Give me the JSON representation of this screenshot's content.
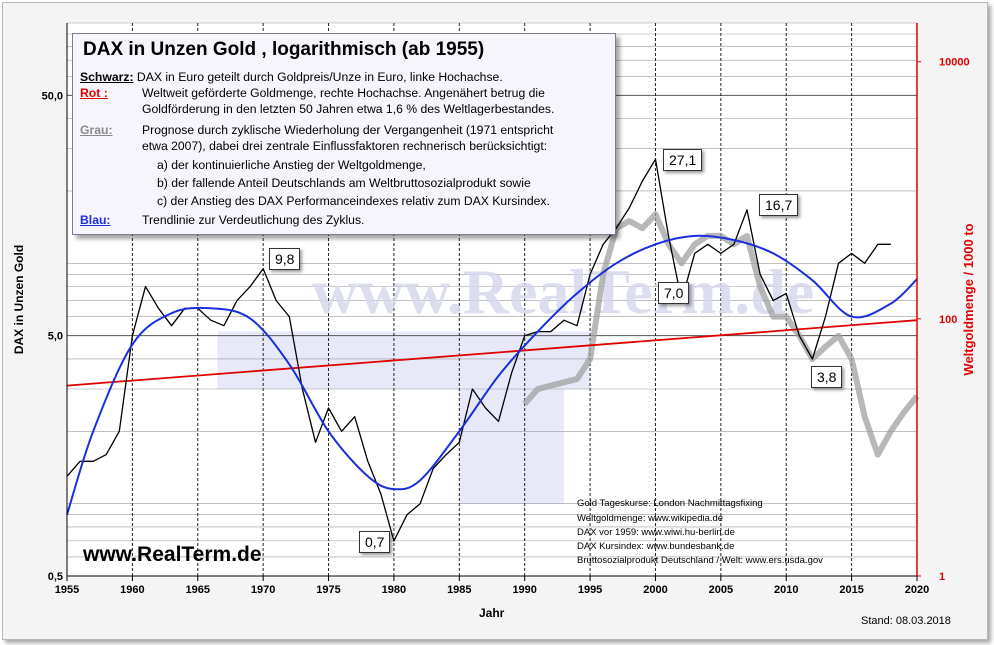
{
  "chart_data": {
    "type": "line",
    "title": "DAX in Unzen Gold , logarithmisch  (ab 1955)",
    "xlabel": "Jahr",
    "ylabel": "DAX in Unzen Gold",
    "ylabel_right": "Weltgoldmenge / 1000 to",
    "x_range": [
      1955,
      2020
    ],
    "y_range": [
      0.5,
      100
    ],
    "y_scale": "log",
    "y_right_range": [
      1,
      20000
    ],
    "y_right_scale": "log",
    "x_ticks": [
      "1955",
      "1960",
      "1965",
      "1970",
      "1975",
      "1980",
      "1985",
      "1990",
      "1995",
      "2000",
      "2005",
      "2010",
      "2015",
      "2020"
    ],
    "y_ticks_left": [
      "0,5",
      "5,0",
      "50,0"
    ],
    "y_ticks_right": [
      "1",
      "100",
      "10000"
    ],
    "series": [
      {
        "name": "Schwarz",
        "color": "#000000",
        "x": [
          1955,
          1956,
          1957,
          1958,
          1959,
          1960,
          1961,
          1962,
          1963,
          1964,
          1965,
          1966,
          1967,
          1968,
          1969,
          1970,
          1971,
          1972,
          1973,
          1974,
          1975,
          1976,
          1977,
          1978,
          1979,
          1980,
          1981,
          1982,
          1983,
          1984,
          1985,
          1986,
          1987,
          1988,
          1989,
          1990,
          1991,
          1992,
          1993,
          1994,
          1995,
          1996,
          1997,
          1998,
          1999,
          2000,
          2001,
          2002,
          2003,
          2004,
          2005,
          2006,
          2007,
          2008,
          2009,
          2010,
          2011,
          2012,
          2013,
          2014,
          2015,
          2016,
          2017,
          2018
        ],
        "y": [
          1.3,
          1.5,
          1.5,
          1.6,
          2.0,
          5.0,
          8.0,
          6.5,
          5.5,
          6.5,
          6.5,
          5.8,
          5.5,
          7.0,
          8.0,
          9.5,
          7.0,
          6.0,
          3.0,
          1.8,
          2.5,
          2.0,
          2.3,
          1.5,
          1.1,
          0.7,
          0.9,
          1.0,
          1.4,
          1.6,
          1.8,
          3.0,
          2.5,
          2.2,
          3.5,
          5.0,
          5.2,
          5.2,
          5.8,
          5.5,
          9.0,
          12.0,
          14.0,
          17.0,
          22.0,
          27.1,
          13.0,
          7.0,
          11.0,
          12.0,
          11.0,
          12.0,
          16.7,
          9.0,
          7.0,
          7.5,
          5.0,
          4.0,
          6.0,
          10.0,
          11.0,
          10.0,
          12.0,
          12.0
        ]
      },
      {
        "name": "Rot",
        "color": "#e00000",
        "x": [
          1955,
          2020
        ],
        "y": [
          3.1,
          5.8
        ]
      },
      {
        "name": "Grau",
        "color": "#a0a0a0",
        "x": [
          1990,
          1991,
          1992,
          1993,
          1994,
          1995,
          1996,
          1997,
          1998,
          1999,
          2000,
          2001,
          2002,
          2003,
          2004,
          2005,
          2006,
          2007,
          2008,
          2009,
          2010,
          2011,
          2012,
          2013,
          2014,
          2015,
          2016,
          2017,
          2018,
          2019,
          2020
        ],
        "y": [
          2.6,
          3.0,
          3.1,
          3.2,
          3.3,
          4.0,
          9.0,
          14.0,
          15.0,
          14.0,
          16.0,
          12.0,
          10.0,
          12.0,
          13.0,
          13.0,
          12.0,
          13.0,
          8.0,
          6.0,
          6.0,
          5.0,
          4.0,
          4.5,
          5.0,
          4.0,
          2.3,
          1.6,
          2.0,
          2.4,
          2.8
        ]
      },
      {
        "name": "Blau",
        "color": "#1a2edc",
        "x": [
          1955,
          1957,
          1960,
          1963,
          1966,
          1969,
          1972,
          1975,
          1978,
          1980,
          1982,
          1985,
          1988,
          1991,
          1994,
          1997,
          2000,
          2003,
          2006,
          2009,
          2012,
          2015,
          2018,
          2020
        ],
        "y": [
          0.9,
          2.0,
          4.6,
          6.2,
          6.5,
          5.9,
          3.8,
          2.0,
          1.3,
          1.15,
          1.25,
          2.0,
          3.4,
          5.2,
          7.5,
          10.0,
          12.0,
          13.0,
          12.5,
          11.0,
          8.5,
          6.0,
          6.8,
          8.6
        ]
      }
    ],
    "annotations": [
      "9,8",
      "0,7",
      "27,1",
      "7,0",
      "16,7",
      "3,8"
    ],
    "grid": true,
    "legend_position": "top-left"
  },
  "legend": {
    "title": "DAX in Unzen Gold , logarithmisch  (ab 1955)",
    "schwarz_key": "Schwarz:",
    "schwarz_text": "DAX in Euro geteilt durch Goldpreis/Unze in Euro, linke Hochachse.",
    "rot_key": "Rot :",
    "rot_text1": "Weltweit geförderte Goldmenge, rechte Hochachse. Angenähert betrug die",
    "rot_text2": "Goldförderung in den letzten 50 Jahren etwa 1,6 %  des Weltlagerbestandes.",
    "grau_key": "Grau:",
    "grau_text1": "Prognose durch zyklische Wiederholung der Vergangenheit (1971 entspricht",
    "grau_text2": "etwa 2007),   dabei drei zentrale Einflussfaktoren rechnerisch berücksichtigt:",
    "grau_a": "a) der kontinuierliche Anstieg der Weltgoldmenge,",
    "grau_b": "b) der fallende Anteil Deutschlands am Weltbruttosozialprodukt sowie",
    "grau_c": "c) der Anstieg des DAX Performanceindexes relativ zum DAX Kursindex.",
    "blau_key": "Blau:",
    "blau_text": "Trendlinie zur Verdeutlichung des Zyklus."
  },
  "sources": [
    "Gold Tageskurse: London Nachmittagsfixing",
    "Weltgoldmenge: www.wikipedia.de",
    "DAX vor 1959:  www.wiwi.hu-berlin.de",
    "DAX Kursindex: www.bundesbank.de",
    "Bruttosozialprodukt Deutschland / Welt: www.ers.usda.gov"
  ],
  "website": "www.RealTerm.de",
  "watermark": "www.RealTerm.de",
  "stand": "Stand:  08.03.2018",
  "colors": {
    "black": "#000000",
    "red": "#e00000",
    "gray": "#a0a0a0",
    "blue": "#1a2edc",
    "band": "#dde0f6"
  }
}
